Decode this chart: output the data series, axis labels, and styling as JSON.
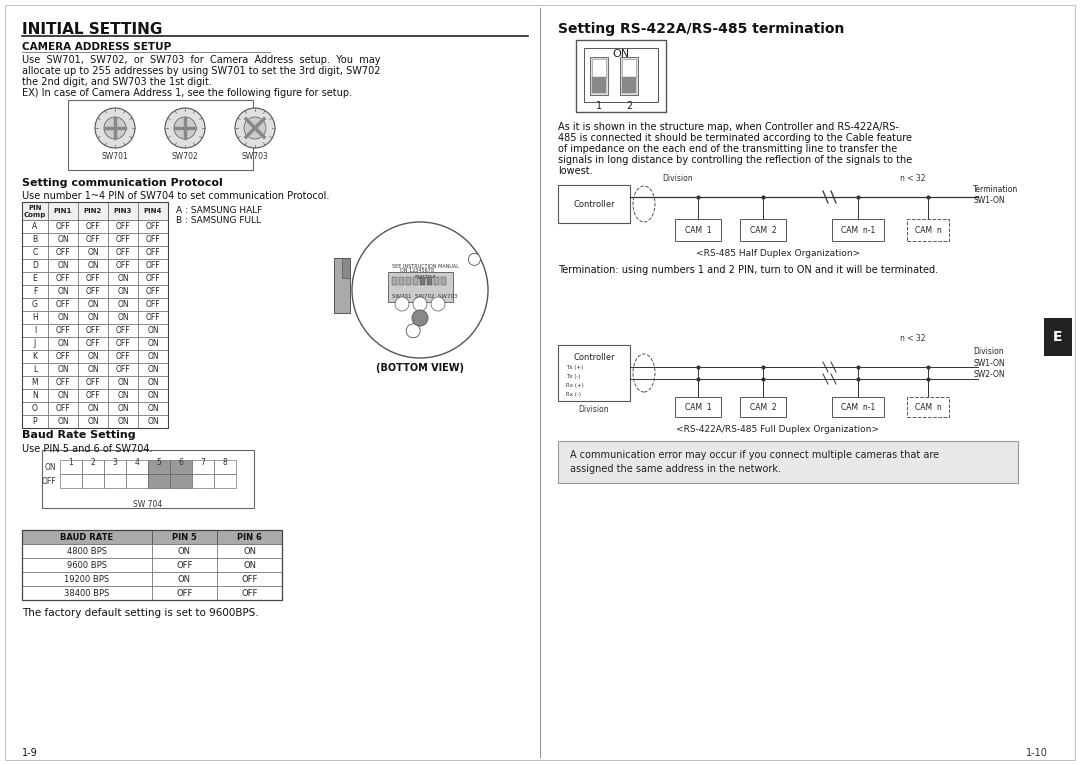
{
  "page_bg": "#ffffff",
  "left_panel": {
    "title": "INITIAL SETTING",
    "section1_title": "CAMERA ADDRESS SETUP",
    "section1_text_lines": [
      "Use  SW701,  SW702,  or  SW703  for  Camera  Address  setup.  You  may",
      "allocate up to 255 addresses by using SW701 to set the 3rd digit, SW702",
      "the 2nd digit, and SW703 the 1st digit.",
      "EX) In case of Camera Address 1, see the following figure for setup."
    ],
    "section2_title": "Setting communication Protocol",
    "section2_text": "Use number 1~4 PIN of SW704 to set communication Protocol.",
    "protocol_note": "A : SAMSUNG HALF\nB : SAMSUNG FULL",
    "protocol_table_headers": [
      "PIN\nComp",
      "PIN1",
      "PIN2",
      "PIN3",
      "PIN4"
    ],
    "protocol_table_rows": [
      [
        "A",
        "OFF",
        "OFF",
        "OFF",
        "OFF"
      ],
      [
        "B",
        "ON",
        "OFF",
        "OFF",
        "OFF"
      ],
      [
        "C",
        "OFF",
        "ON",
        "OFF",
        "OFF"
      ],
      [
        "D",
        "ON",
        "ON",
        "OFF",
        "OFF"
      ],
      [
        "E",
        "OFF",
        "OFF",
        "ON",
        "OFF"
      ],
      [
        "F",
        "ON",
        "OFF",
        "ON",
        "OFF"
      ],
      [
        "G",
        "OFF",
        "ON",
        "ON",
        "OFF"
      ],
      [
        "H",
        "ON",
        "ON",
        "ON",
        "OFF"
      ],
      [
        "I",
        "OFF",
        "OFF",
        "OFF",
        "ON"
      ],
      [
        "J",
        "ON",
        "OFF",
        "OFF",
        "ON"
      ],
      [
        "K",
        "OFF",
        "ON",
        "OFF",
        "ON"
      ],
      [
        "L",
        "ON",
        "ON",
        "OFF",
        "ON"
      ],
      [
        "M",
        "OFF",
        "OFF",
        "ON",
        "ON"
      ],
      [
        "N",
        "ON",
        "OFF",
        "ON",
        "ON"
      ],
      [
        "O",
        "OFF",
        "ON",
        "ON",
        "ON"
      ],
      [
        "P",
        "ON",
        "ON",
        "ON",
        "ON"
      ]
    ],
    "section3_title": "Baud Rate Setting",
    "section3_text": "Use PIN 5 and 6 of SW704.",
    "baud_table_headers": [
      "BAUD RATE",
      "PIN 5",
      "PIN 6"
    ],
    "baud_table_rows": [
      [
        "4800 BPS",
        "ON",
        "ON"
      ],
      [
        "9600 BPS",
        "OFF",
        "ON"
      ],
      [
        "19200 BPS",
        "ON",
        "OFF"
      ],
      [
        "38400 BPS",
        "OFF",
        "OFF"
      ]
    ],
    "footer_text": "The factory default setting is set to 9600BPS.",
    "page_num_left": "1-9"
  },
  "right_panel": {
    "title": "Setting RS-422A/RS-485 termination",
    "body_text_lines": [
      "As it is shown in the structure map, when Controller and RS-422A/RS-",
      "485 is connected it should be terminated according to the Cable feature",
      "of impedance on the each end of the transmitting line to transfer the",
      "signals in long distance by controlling the reflection of the signals to the",
      "lowest."
    ],
    "diagram1_label": "<RS-485 Half Duplex Organization>",
    "diagram1_caption": "Termination: using numbers 1 and 2 PIN, turn to ON and it will be terminated.",
    "diagram2_label": "<RS-422A/RS-485 Full Duplex Organization>",
    "note_text": "A communication error may occur if you connect multiple cameras that are\nassigned the same address in the network.",
    "page_num_right": "1-10",
    "tab_label": "E"
  }
}
